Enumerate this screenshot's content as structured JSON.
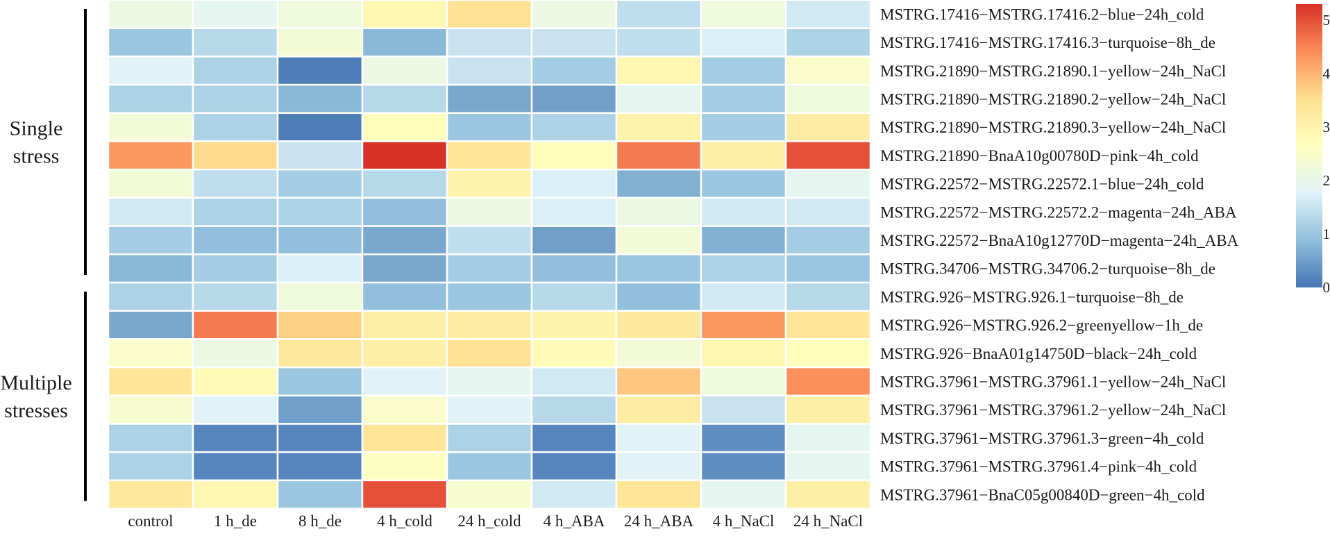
{
  "chart_data": {
    "type": "heatmap",
    "title": "",
    "columns": [
      "control",
      "1 h_de",
      "8 h_de",
      "4 h_cold",
      "24 h_cold",
      "4 h_ABA",
      "24 h_ABA",
      "4 h_NaCl",
      "24 h_NaCl"
    ],
    "rows": [
      "MSTRG.17416−MSTRG.17416.2−blue−24h_cold",
      "MSTRG.17416−MSTRG.17416.3−turquoise−8h_de",
      "MSTRG.21890−MSTRG.21890.1−yellow−24h_NaCl",
      "MSTRG.21890−MSTRG.21890.2−yellow−24h_NaCl",
      "MSTRG.21890−MSTRG.21890.3−yellow−24h_NaCl",
      "MSTRG.21890−BnaA10g00780D−pink−4h_cold",
      "MSTRG.22572−MSTRG.22572.1−blue−24h_cold",
      "MSTRG.22572−MSTRG.22572.2−magenta−24h_ABA",
      "MSTRG.22572−BnaA10g12770D−magenta−24h_ABA",
      "MSTRG.34706−MSTRG.34706.2−turquoise−8h_de",
      "MSTRG.926−MSTRG.926.1−turquoise−8h_de",
      "MSTRG.926−MSTRG.926.2−greenyellow−1h_de",
      "MSTRG.926−BnaA01g14750D−black−24h_cold",
      "MSTRG.37961−MSTRG.37961.1−yellow−24h_NaCl",
      "MSTRG.37961−MSTRG.37961.2−yellow−24h_NaCl",
      "MSTRG.37961−MSTRG.37961.3−green−4h_cold",
      "MSTRG.37961−MSTRG.37961.4−pink−4h_cold",
      "MSTRG.37961−BnaC05g00840D−green−4h_cold"
    ],
    "values": [
      [
        2.1,
        1.9,
        2.2,
        2.9,
        3.5,
        2.1,
        1.4,
        2.2,
        1.6
      ],
      [
        1.0,
        1.3,
        2.3,
        0.8,
        1.5,
        1.5,
        1.4,
        1.7,
        1.2
      ],
      [
        1.8,
        1.2,
        0.1,
        2.1,
        1.5,
        1.1,
        2.9,
        1.1,
        2.5
      ],
      [
        1.2,
        1.2,
        0.8,
        1.3,
        0.6,
        0.5,
        1.9,
        1.1,
        2.2
      ],
      [
        2.3,
        1.2,
        0.1,
        2.7,
        1.0,
        1.2,
        3.0,
        1.1,
        3.2
      ],
      [
        4.3,
        3.6,
        1.5,
        5.3,
        3.4,
        2.7,
        4.6,
        3.1,
        5.0
      ],
      [
        2.3,
        1.4,
        1.1,
        1.3,
        3.0,
        1.7,
        0.7,
        1.0,
        1.9
      ],
      [
        1.6,
        1.2,
        1.2,
        0.9,
        2.1,
        1.7,
        2.1,
        1.6,
        1.6
      ],
      [
        1.1,
        0.9,
        0.9,
        0.6,
        1.4,
        0.5,
        2.3,
        0.7,
        1.1
      ],
      [
        0.8,
        1.1,
        1.7,
        0.6,
        1.1,
        0.9,
        1.0,
        1.2,
        1.0
      ],
      [
        1.2,
        1.3,
        2.2,
        0.9,
        1.0,
        1.3,
        0.9,
        1.6,
        1.3
      ],
      [
        0.6,
        4.6,
        3.7,
        3.1,
        3.2,
        3.0,
        3.3,
        4.3,
        3.4
      ],
      [
        2.5,
        2.1,
        3.3,
        3.1,
        3.5,
        2.8,
        2.3,
        2.9,
        2.7
      ],
      [
        3.4,
        2.8,
        1.0,
        1.8,
        1.9,
        1.6,
        3.8,
        2.2,
        4.4
      ],
      [
        2.4,
        1.8,
        0.5,
        2.5,
        1.8,
        1.3,
        3.2,
        1.5,
        3.1
      ],
      [
        1.2,
        0.2,
        0.2,
        3.4,
        1.2,
        0.2,
        1.8,
        0.3,
        1.9
      ],
      [
        1.2,
        0.2,
        0.2,
        2.6,
        1.0,
        0.2,
        1.8,
        0.3,
        1.9
      ],
      [
        3.3,
        2.9,
        1.0,
        5.0,
        2.4,
        1.6,
        3.4,
        1.9,
        3.1
      ]
    ],
    "groups": [
      {
        "label_lines": [
          "Single",
          "stress"
        ],
        "start_row": 0,
        "end_row": 9
      },
      {
        "label_lines": [
          "Multiple",
          "stresses"
        ],
        "start_row": 10,
        "end_row": 17
      }
    ],
    "colorbar": {
      "min": 0,
      "max": 5.3,
      "ticks": [
        0,
        1,
        2,
        3,
        4,
        5
      ],
      "stops": [
        "#4575b4",
        "#91bfdb",
        "#e0f3f8",
        "#ffffbf",
        "#fee090",
        "#fc8d59",
        "#d73027"
      ]
    }
  }
}
